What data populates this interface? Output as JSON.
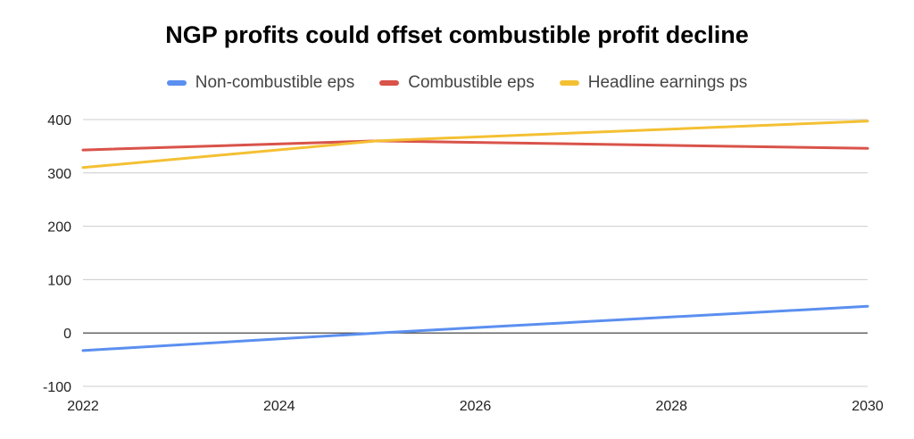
{
  "chart_data": {
    "type": "line",
    "title": "NGP profits could offset combustible profit decline",
    "xlabel": "",
    "ylabel": "",
    "x": [
      2022,
      2025,
      2030
    ],
    "xlim": [
      2022,
      2030
    ],
    "ylim": [
      -100,
      400
    ],
    "xticks": [
      "2022",
      "2024",
      "2026",
      "2028",
      "2030"
    ],
    "yticks": [
      "-100",
      "0",
      "100",
      "200",
      "300",
      "400"
    ],
    "grid": true,
    "legend_position": "top",
    "series": [
      {
        "name": "Non-combustible eps",
        "color": "#5b8ff0",
        "values": [
          -33,
          0,
          50
        ]
      },
      {
        "name": "Combustible eps",
        "color": "#d9534a",
        "values": [
          343,
          360,
          346
        ]
      },
      {
        "name": "Headline earnings ps",
        "color": "#f4c033",
        "values": [
          310,
          360,
          397
        ]
      }
    ]
  }
}
